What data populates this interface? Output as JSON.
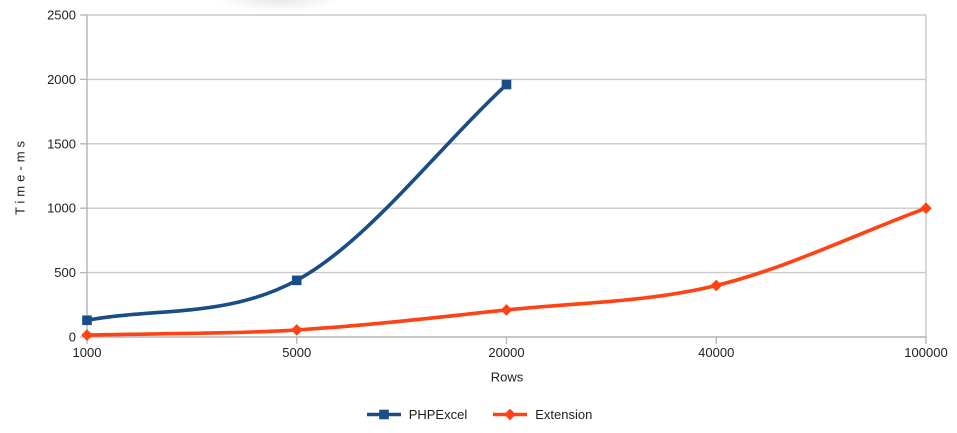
{
  "chart_data": {
    "type": "line",
    "title": "",
    "categories": [
      "1000",
      "5000",
      "20000",
      "40000",
      "100000"
    ],
    "xlabel": "Rows",
    "ylabel": "Time-ms",
    "ylim": [
      0,
      2500
    ],
    "yticks": [
      0,
      500,
      1000,
      1500,
      2000,
      2500
    ],
    "grid": "horizontal-only",
    "legend_position": "bottom-center",
    "line_style": "smooth",
    "series": [
      {
        "name": "PHPExcel",
        "color": "#1A4C85",
        "marker": "square",
        "values": [
          130,
          440,
          1960,
          null,
          null
        ]
      },
      {
        "name": "Extension",
        "color": "#FF4214",
        "marker": "diamond",
        "values": [
          15,
          55,
          210,
          400,
          1000
        ]
      }
    ],
    "colors": {
      "axis": "#B4B4B4",
      "gridline": "#C9C9C9",
      "plot_border": "#C9C9C9",
      "text": "#1E1E1E",
      "background": "#FFFFFF"
    }
  }
}
